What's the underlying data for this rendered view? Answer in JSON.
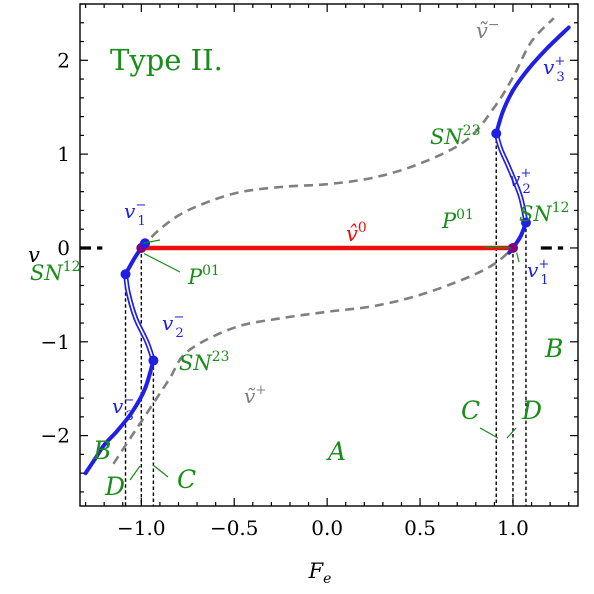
{
  "chart_data": {
    "type": "line",
    "title": "Type II.",
    "xlabel": "F_e",
    "ylabel": "v",
    "xlim": [
      -1.33,
      1.35
    ],
    "ylim": [
      -2.75,
      2.6
    ],
    "x_ticks": [
      -1.0,
      -0.5,
      0.0,
      0.5,
      1.0
    ],
    "x_tick_labels": [
      "−1.0",
      "−0.5",
      "0.0",
      "0.5",
      "1.0"
    ],
    "y_ticks": [
      -2,
      -1,
      0,
      1,
      2
    ],
    "y_tick_labels": [
      "−2",
      "−1",
      "0",
      "1",
      "2"
    ],
    "grid": false,
    "colors": {
      "branch": "#1f1fe6",
      "v_hat0": "#e81010",
      "v_tilde": "#808080",
      "point_P01": "#800080",
      "annotation": "#1a8c1a",
      "branch_label": "#1f1fe6"
    },
    "series": [
      {
        "name": "v̂⁰",
        "style": "solid-red",
        "x": [
          -1.0,
          1.0
        ],
        "y": [
          0,
          0
        ]
      },
      {
        "name": "ṽ⁻",
        "style": "dashed-gray",
        "x": [
          -1.0,
          -0.9,
          -0.75,
          -0.5,
          -0.25,
          0.0,
          0.25,
          0.5,
          0.75,
          0.9,
          1.0,
          1.1,
          1.22
        ],
        "y": [
          0.0,
          0.2,
          0.4,
          0.58,
          0.65,
          0.68,
          0.75,
          0.9,
          1.15,
          1.5,
          1.82,
          2.2,
          2.45
        ]
      },
      {
        "name": "ṽ⁺",
        "style": "dashed-gray",
        "x": [
          -1.15,
          -1.05,
          -0.95,
          -0.85,
          -0.75,
          -0.5,
          -0.25,
          0.0,
          0.25,
          0.5,
          0.75,
          0.9,
          1.0
        ],
        "y": [
          -2.3,
          -2.0,
          -1.7,
          -1.4,
          -1.1,
          -0.85,
          -0.75,
          -0.68,
          -0.62,
          -0.5,
          -0.32,
          -0.17,
          0.0
        ]
      },
      {
        "name": "left branch",
        "style": "blue-branch",
        "x": [
          -0.98,
          -1.0,
          -1.04,
          -1.085,
          -1.07,
          -1.03,
          -0.97,
          -0.935,
          -0.98,
          -1.05,
          -1.13,
          -1.2,
          -1.25,
          -1.3
        ],
        "y": [
          0.05,
          0.0,
          -0.12,
          -0.28,
          -0.48,
          -0.75,
          -1.0,
          -1.2,
          -1.5,
          -1.75,
          -1.95,
          -2.1,
          -2.25,
          -2.4
        ]
      },
      {
        "name": "right branch",
        "style": "blue-branch",
        "x": [
          0.98,
          1.0,
          1.04,
          1.07,
          1.04,
          0.98,
          0.935,
          0.91,
          0.945,
          1.0,
          1.08,
          1.18,
          1.3
        ],
        "y": [
          -0.05,
          0.0,
          0.12,
          0.27,
          0.55,
          0.85,
          1.05,
          1.22,
          1.45,
          1.68,
          1.9,
          2.12,
          2.35
        ]
      }
    ],
    "points": [
      {
        "name": "P01 left",
        "x": -1.0,
        "y": 0.0,
        "color": "#800080"
      },
      {
        "name": "P01 right",
        "x": 1.0,
        "y": 0.0,
        "color": "#800080"
      },
      {
        "name": "SN12 left",
        "x": -1.085,
        "y": -0.28,
        "color": "#1f1fe6"
      },
      {
        "name": "SN23 left",
        "x": -0.935,
        "y": -1.2,
        "color": "#1f1fe6"
      },
      {
        "name": "SN12 right",
        "x": 1.07,
        "y": 0.27,
        "color": "#1f1fe6"
      },
      {
        "name": "SN23 right",
        "x": 0.91,
        "y": 1.22,
        "color": "#1f1fe6"
      },
      {
        "name": "left branch end",
        "x": -0.98,
        "y": 0.05,
        "color": "#1f1fe6"
      }
    ],
    "dashed_extensions": [
      {
        "x": [
          -1.33,
          -1.21
        ],
        "y": [
          0,
          0
        ]
      },
      {
        "x": [
          1.15,
          1.27
        ],
        "y": [
          0,
          0
        ]
      }
    ],
    "guide_lines": [
      {
        "x": -1.085,
        "from_y": -0.28
      },
      {
        "x": -1.0,
        "from_y": 0.0
      },
      {
        "x": -0.935,
        "from_y": -1.2
      },
      {
        "x": 0.91,
        "from_y": 1.22
      },
      {
        "x": 1.0,
        "from_y": 0.0
      },
      {
        "x": 1.07,
        "from_y": 0.27
      }
    ],
    "annotations": {
      "v_tilde_minus": {
        "base": "ṽ",
        "sup": "−"
      },
      "v_tilde_plus": {
        "base": "ṽ",
        "sup": "+"
      },
      "v_hat0": {
        "base": "v̂",
        "sup": "0"
      },
      "v3_plus": {
        "base": "v",
        "sup": "+",
        "sub": "3"
      },
      "v2_plus": {
        "base": "v",
        "sup": "+",
        "sub": "2"
      },
      "v1_plus": {
        "base": "v",
        "sup": "+",
        "sub": "1"
      },
      "v1_minus": {
        "base": "v",
        "sup": "−",
        "sub": "1"
      },
      "v2_minus": {
        "base": "v",
        "sup": "−",
        "sub": "2"
      },
      "v3_minus": {
        "base": "v",
        "sup": "−",
        "sub": "3"
      },
      "SN23_right": {
        "base": "SN",
        "sup": "23"
      },
      "SN12_right": {
        "base": "SN",
        "sup": "12"
      },
      "SN12_left": {
        "base": "SN",
        "sup": "12"
      },
      "SN23_left": {
        "base": "SN",
        "sup": "23"
      },
      "P01_right": {
        "base": "P",
        "sup": "01"
      },
      "P01_left": {
        "base": "P",
        "sup": "01"
      },
      "region_A": "A",
      "region_B_left": "B",
      "region_B_right": "B",
      "region_C_left": "C",
      "region_C_right": "C",
      "region_D_left": "D",
      "region_D_right": "D"
    }
  }
}
